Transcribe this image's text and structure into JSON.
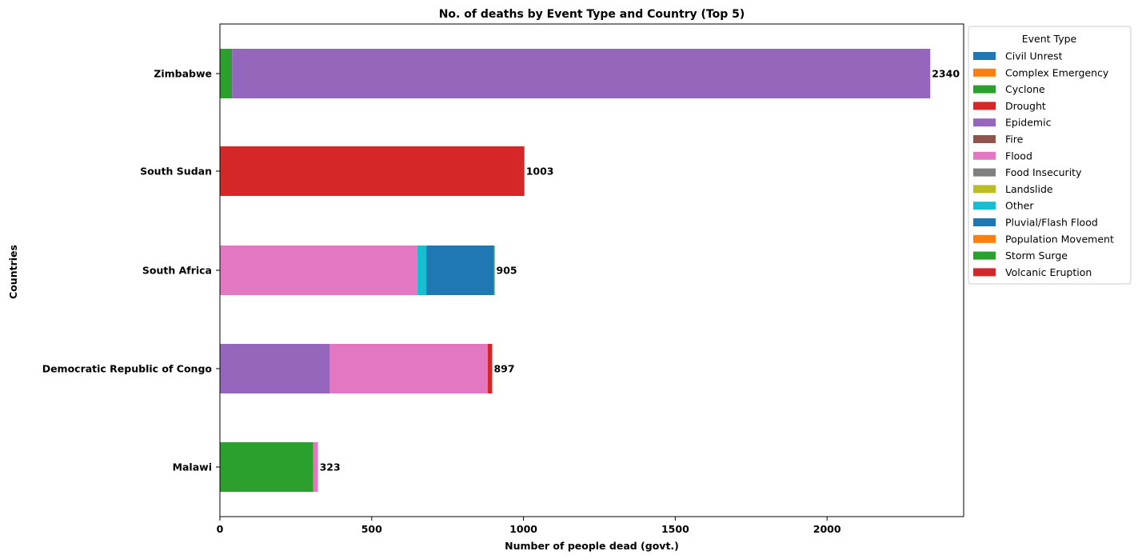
{
  "chart_data": {
    "type": "bar",
    "orientation": "horizontal",
    "stacked": true,
    "title": "No. of deaths by Event Type and Country (Top 5)",
    "xlabel": "Number of people dead (govt.)",
    "ylabel": "Countries",
    "xlim": [
      0,
      2450
    ],
    "xticks": [
      "0",
      "500",
      "1000",
      "1500",
      "2000"
    ],
    "xtick_values": [
      0,
      500,
      1000,
      1500,
      2000
    ],
    "categories": [
      "Zimbabwe",
      "South Sudan",
      "South Africa",
      "Democratic Republic of Congo",
      "Malawi"
    ],
    "totals": [
      2340,
      1003,
      905,
      897,
      323
    ],
    "legend": {
      "title": "Event Type",
      "placement": "outside-right-top"
    },
    "series": [
      {
        "name": "Civil Unrest",
        "color": "#1f77b4",
        "values": [
          0,
          0,
          0,
          0,
          0
        ]
      },
      {
        "name": "Complex Emergency",
        "color": "#ff7f0e",
        "values": [
          0,
          0,
          0,
          0,
          0
        ]
      },
      {
        "name": "Cyclone",
        "color": "#2ca02c",
        "values": [
          40,
          0,
          0,
          0,
          307
        ]
      },
      {
        "name": "Drought",
        "color": "#d62728",
        "values": [
          0,
          1003,
          0,
          0,
          0
        ]
      },
      {
        "name": "Epidemic",
        "color": "#9467bd",
        "values": [
          2300,
          0,
          0,
          362,
          0
        ]
      },
      {
        "name": "Fire",
        "color": "#8c564b",
        "values": [
          0,
          0,
          0,
          0,
          0
        ]
      },
      {
        "name": "Flood",
        "color": "#e377c2",
        "values": [
          0,
          0,
          650,
          520,
          16
        ]
      },
      {
        "name": "Food Insecurity",
        "color": "#7f7f7f",
        "values": [
          0,
          0,
          0,
          0,
          0
        ]
      },
      {
        "name": "Landslide",
        "color": "#bcbd22",
        "values": [
          0,
          0,
          0,
          0,
          0
        ]
      },
      {
        "name": "Other",
        "color": "#17becf",
        "values": [
          0,
          0,
          30,
          0,
          0
        ]
      },
      {
        "name": "Pluvial/Flash Flood",
        "color": "#1f77b4",
        "values": [
          0,
          0,
          222,
          0,
          0
        ]
      },
      {
        "name": "Population Movement",
        "color": "#ff7f0e",
        "values": [
          0,
          0,
          0,
          0,
          0
        ]
      },
      {
        "name": "Storm Surge",
        "color": "#2ca02c",
        "values": [
          0,
          0,
          3,
          0,
          0
        ]
      },
      {
        "name": "Volcanic Eruption",
        "color": "#d62728",
        "values": [
          0,
          0,
          0,
          15,
          0
        ]
      }
    ]
  }
}
